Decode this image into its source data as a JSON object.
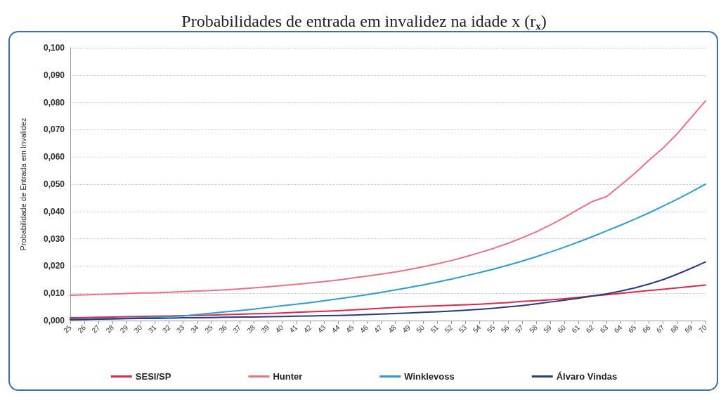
{
  "chart_data": {
    "type": "line",
    "title": "Probabilidades de entrada em invalidez na idade x (r$_{x}$)",
    "ylabel": "Probabilidade de Entrada em Invalidez",
    "categories": [
      "25",
      "26",
      "27",
      "28",
      "29",
      "30",
      "31",
      "32",
      "33",
      "34",
      "35",
      "36",
      "37",
      "38",
      "39",
      "40",
      "41",
      "42",
      "43",
      "44",
      "45",
      "46",
      "47",
      "48",
      "49",
      "50",
      "51",
      "52",
      "53",
      "54",
      "55",
      "56",
      "57",
      "58",
      "59",
      "60",
      "61",
      "62",
      "63",
      "64",
      "65",
      "66",
      "67",
      "68",
      "69",
      "70"
    ],
    "ylim": [
      0,
      0.1
    ],
    "yticks": [
      {
        "value": 0,
        "label": "0,000"
      },
      {
        "value": 0.01,
        "label": "0,010"
      },
      {
        "value": 0.02,
        "label": "0,020"
      },
      {
        "value": 0.03,
        "label": "0,030"
      },
      {
        "value": 0.04,
        "label": "0,040"
      },
      {
        "value": 0.05,
        "label": "0,050"
      },
      {
        "value": 0.06,
        "label": "0,060"
      },
      {
        "value": 0.07,
        "label": "0,070"
      },
      {
        "value": 0.08,
        "label": "0,080"
      },
      {
        "value": 0.09,
        "label": "0,090"
      },
      {
        "value": 0.1,
        "label": "0,100"
      }
    ],
    "grid": "y",
    "legend": "bottom",
    "marker": "none",
    "line_style": "solid",
    "series": [
      {
        "name": "SESI/SP",
        "color": "#e0284a",
        "values": [
          0.001,
          0.0011,
          0.0012,
          0.0013,
          0.0014,
          0.0015,
          0.0016,
          0.0017,
          0.0018,
          0.0019,
          0.002,
          0.0022,
          0.0023,
          0.0025,
          0.0026,
          0.0028,
          0.003,
          0.0032,
          0.0034,
          0.0036,
          0.0039,
          0.0042,
          0.0045,
          0.0048,
          0.005,
          0.0052,
          0.0054,
          0.0056,
          0.0058,
          0.006,
          0.0063,
          0.0066,
          0.007,
          0.0073,
          0.0076,
          0.008,
          0.0085,
          0.009,
          0.0095,
          0.01,
          0.0105,
          0.011,
          0.0115,
          0.012,
          0.0125,
          0.013
        ]
      },
      {
        "name": "Hunter",
        "color": "#f07080",
        "values": [
          0.0093,
          0.0094,
          0.0096,
          0.0097,
          0.0099,
          0.0101,
          0.0102,
          0.0104,
          0.0106,
          0.0108,
          0.011,
          0.0113,
          0.0116,
          0.012,
          0.0124,
          0.0128,
          0.0133,
          0.0138,
          0.0143,
          0.0149,
          0.0156,
          0.0163,
          0.017,
          0.0178,
          0.0187,
          0.0197,
          0.0208,
          0.022,
          0.0234,
          0.0249,
          0.0265,
          0.0283,
          0.0303,
          0.0325,
          0.035,
          0.0378,
          0.0408,
          0.0437,
          0.0455,
          0.0497,
          0.054,
          0.0588,
          0.0633,
          0.0685,
          0.0745,
          0.0805
        ]
      },
      {
        "name": "Winklevoss",
        "color": "#2a9ed0",
        "values": [
          0.0005,
          0.0006,
          0.0007,
          0.0008,
          0.0009,
          0.001,
          0.0012,
          0.0015,
          0.0017,
          0.0022,
          0.0027,
          0.0032,
          0.0037,
          0.0042,
          0.0048,
          0.0054,
          0.006,
          0.0066,
          0.0073,
          0.008,
          0.0087,
          0.0095,
          0.0103,
          0.0112,
          0.0121,
          0.0131,
          0.0141,
          0.0152,
          0.0164,
          0.0176,
          0.0189,
          0.0203,
          0.0218,
          0.0234,
          0.0251,
          0.0269,
          0.0288,
          0.0308,
          0.0329,
          0.035,
          0.0372,
          0.0395,
          0.042,
          0.0445,
          0.0472,
          0.05
        ]
      },
      {
        "name": "Álvaro Vindas",
        "color": "#2a3a80",
        "values": [
          0.0003,
          0.0004,
          0.0005,
          0.0006,
          0.0007,
          0.0008,
          0.0008,
          0.0009,
          0.001,
          0.001,
          0.0011,
          0.0012,
          0.0013,
          0.0013,
          0.0014,
          0.0015,
          0.0016,
          0.0017,
          0.0018,
          0.0019,
          0.002,
          0.0022,
          0.0024,
          0.0026,
          0.0028,
          0.003,
          0.0032,
          0.0035,
          0.0038,
          0.0041,
          0.0045,
          0.005,
          0.0055,
          0.0061,
          0.0068,
          0.0075,
          0.0082,
          0.009,
          0.0098,
          0.0108,
          0.012,
          0.0134,
          0.015,
          0.017,
          0.0192,
          0.0215
        ]
      }
    ]
  }
}
